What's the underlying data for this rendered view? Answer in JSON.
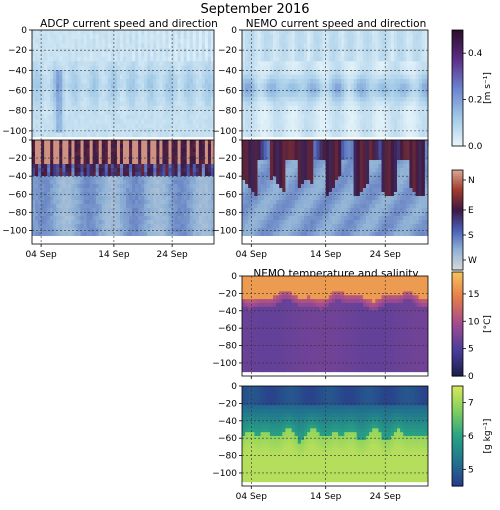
{
  "figure_title": "September 2016",
  "chart_data": [
    {
      "type": "heatmap",
      "title": "ADCP current speed and direction",
      "variable": "current speed",
      "x": [
        "04 Sep",
        "14 Sep",
        "24 Sep"
      ],
      "y_ticks": [
        0,
        -20,
        -40,
        -60,
        -80,
        -100
      ],
      "ylim": [
        -115,
        0
      ],
      "grid": true,
      "colorbar": {
        "ticks": [
          "0.0",
          "0.2",
          "0.4"
        ],
        "label": "[m s⁻¹]",
        "range": [
          0,
          0.5
        ]
      },
      "colors": [
        "#e9f6fb",
        "#9fc8e6",
        "#6b82cf",
        "#5b2d86",
        "#2c0d28"
      ]
    },
    {
      "type": "heatmap",
      "title": "NEMO current speed and direction",
      "variable": "current speed",
      "x": [
        "04 Sep",
        "14 Sep",
        "24 Sep"
      ],
      "y_ticks": [
        0,
        -20,
        -40,
        -60,
        -80,
        -100
      ],
      "ylim": [
        -115,
        0
      ],
      "grid": true
    },
    {
      "type": "heatmap",
      "title": "",
      "variable": "ADCP current direction",
      "x": [
        "04 Sep",
        "14 Sep",
        "24 Sep"
      ],
      "y_ticks": [
        0,
        -20,
        -40,
        -60,
        -80,
        -100
      ],
      "ylim": [
        -115,
        0
      ],
      "grid": true,
      "colorbar": {
        "ticks": [
          "N",
          "E",
          "S",
          "W"
        ],
        "label": "",
        "cyclic": true
      },
      "colors": [
        "#d9d9d9",
        "#8fb2d6",
        "#4a5eb6",
        "#3d1944",
        "#a23b2c",
        "#d8a896"
      ]
    },
    {
      "type": "heatmap",
      "title": "",
      "variable": "NEMO current direction",
      "x": [
        "04 Sep",
        "14 Sep",
        "24 Sep"
      ],
      "y_ticks": [
        0,
        -20,
        -40,
        -60,
        -80,
        -100
      ],
      "ylim": [
        -115,
        0
      ],
      "grid": true
    },
    {
      "type": "heatmap",
      "title": "NEMO temperature and salinity",
      "variable": "temperature",
      "x": [
        "04 Sep",
        "14 Sep",
        "24 Sep"
      ],
      "y_ticks": [
        0,
        -20,
        -40,
        -60,
        -80,
        -100
      ],
      "ylim": [
        -115,
        0
      ],
      "grid": true,
      "colorbar": {
        "ticks": [
          "0",
          "5",
          "10",
          "15"
        ],
        "label": "[°C]",
        "range": [
          0,
          19
        ]
      },
      "colors": [
        "#1b1f4a",
        "#4b3d9c",
        "#a24b8f",
        "#e57a4a",
        "#f6c55a"
      ]
    },
    {
      "type": "heatmap",
      "title": "",
      "variable": "salinity",
      "x": [
        "04 Sep",
        "14 Sep",
        "24 Sep"
      ],
      "y_ticks": [
        0,
        -20,
        -40,
        -60,
        -80,
        -100
      ],
      "ylim": [
        -115,
        0
      ],
      "grid": true,
      "colorbar": {
        "ticks": [
          "5",
          "6",
          "7"
        ],
        "label": "[g kg⁻¹]",
        "range": [
          4.5,
          7.5
        ]
      },
      "colors": [
        "#2a3a8c",
        "#21758e",
        "#29a383",
        "#7fcf5e",
        "#d8e85a"
      ]
    }
  ]
}
